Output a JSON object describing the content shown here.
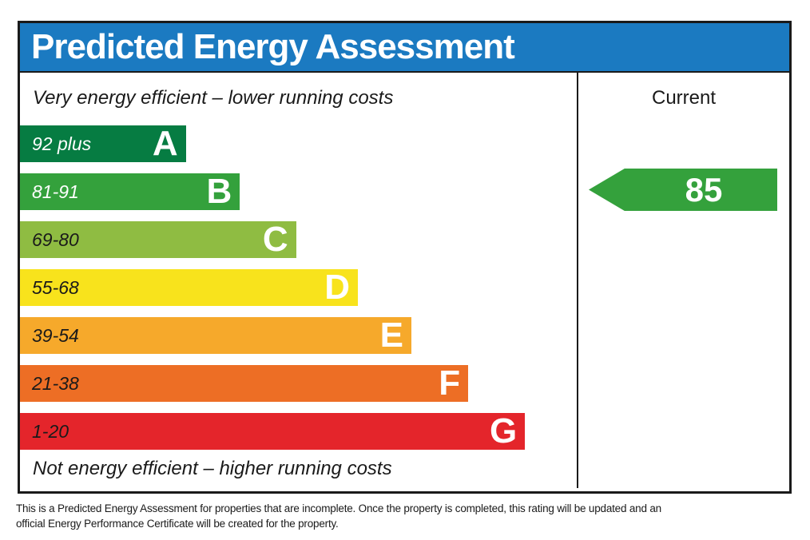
{
  "title": "Predicted Energy Assessment",
  "colors": {
    "header_blue": "#1b7ac1",
    "border_black": "#1a1a1a",
    "band_text_dark": "#1a1a1a",
    "band_text_light": "#ffffff"
  },
  "chart_data": {
    "type": "bar",
    "title": "Predicted Energy Assessment",
    "top_caption": "Very energy efficient – lower running costs",
    "bottom_caption": "Not energy efficient – higher running costs",
    "column_header": "Current",
    "current_rating": {
      "value": "85",
      "band": "B",
      "color": "#34a13c"
    },
    "bands": [
      {
        "letter": "A",
        "range": "92 plus",
        "color": "#067c42",
        "width_pct": 29.8,
        "text_color": "#ffffff"
      },
      {
        "letter": "B",
        "range": "81-91",
        "color": "#34a13c",
        "width_pct": 39.5,
        "text_color": "#ffffff"
      },
      {
        "letter": "C",
        "range": "69-80",
        "color": "#8fbc42",
        "width_pct": 49.6,
        "text_color": "#1a1a1a"
      },
      {
        "letter": "D",
        "range": "55-68",
        "color": "#f8e31c",
        "width_pct": 60.7,
        "text_color": "#1a1a1a"
      },
      {
        "letter": "E",
        "range": "39-54",
        "color": "#f6a92b",
        "width_pct": 70.3,
        "text_color": "#1a1a1a"
      },
      {
        "letter": "F",
        "range": "21-38",
        "color": "#ed6e25",
        "width_pct": 80.5,
        "text_color": "#1a1a1a"
      },
      {
        "letter": "G",
        "range": "1-20",
        "color": "#e4252b",
        "width_pct": 90.7,
        "text_color": "#1a1a1a"
      }
    ]
  },
  "footer": {
    "line1": "This is a Predicted Energy Assessment for properties that are incomplete. Once the property is completed, this rating will be updated and an",
    "line2": "official Energy Performance Certificate will be created for the property."
  }
}
